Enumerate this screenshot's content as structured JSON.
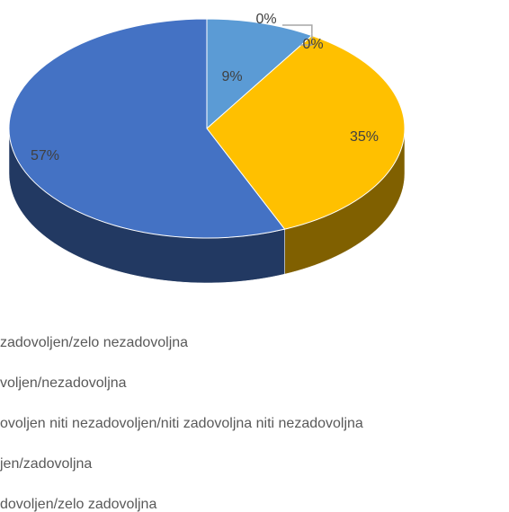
{
  "chart_data": {
    "type": "pie",
    "categories": [
      "zadovoljen/zelo nezadovoljna",
      "voljen/nezadovoljna",
      "ovoljen niti nezadovoljen/niti zadovoljna niti nezadovoljna",
      "jen/zadovoljna",
      "dovoljen/zelo zadovoljna"
    ],
    "values": [
      9,
      0,
      0,
      35,
      57
    ],
    "value_labels": [
      "9%",
      "0%",
      "0%",
      "35%",
      "57%"
    ],
    "colors": [
      "#5b9bd5",
      "#ed7d31",
      "#a5a5a5",
      "#ffc000",
      "#4472c4"
    ]
  }
}
